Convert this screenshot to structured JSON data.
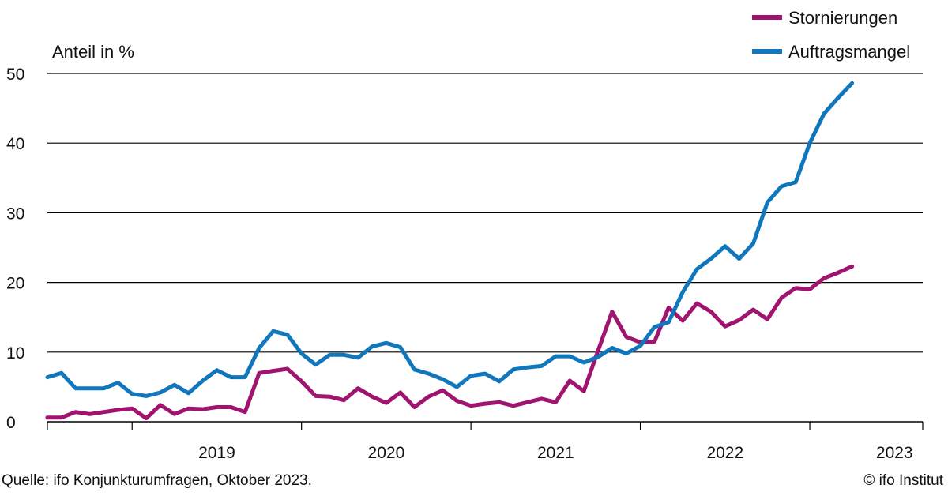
{
  "chart_data": {
    "type": "line",
    "ylabel": "Anteil in %",
    "ylim": [
      0,
      50
    ],
    "y_ticks": [
      0,
      10,
      20,
      30,
      40,
      50
    ],
    "x_start": "2018-07",
    "x_end": "2023-09",
    "x_tick_labels": [
      "2019",
      "2020",
      "2021",
      "2022",
      "2023"
    ],
    "grid": "horizontal",
    "legend_position": "top-right",
    "series": [
      {
        "name": "Stornierungen",
        "color": "#a0136e",
        "points": [
          [
            "2018-07",
            0.6
          ],
          [
            "2018-08",
            0.6
          ],
          [
            "2018-09",
            1.4
          ],
          [
            "2018-10",
            1.1
          ],
          [
            "2018-11",
            1.4
          ],
          [
            "2018-12",
            1.7
          ],
          [
            "2019-01",
            1.9
          ],
          [
            "2019-02",
            0.5
          ],
          [
            "2019-03",
            2.4
          ],
          [
            "2019-04",
            1.1
          ],
          [
            "2019-05",
            1.9
          ],
          [
            "2019-06",
            1.8
          ],
          [
            "2019-07",
            2.1
          ],
          [
            "2019-08",
            2.1
          ],
          [
            "2019-09",
            1.4
          ],
          [
            "2019-10",
            7.0
          ],
          [
            "2019-11",
            7.3
          ],
          [
            "2019-12",
            7.6
          ],
          [
            "2020-01",
            5.8
          ],
          [
            "2020-02",
            3.7
          ],
          [
            "2020-03",
            3.6
          ],
          [
            "2020-04",
            3.1
          ],
          [
            "2020-05",
            4.8
          ],
          [
            "2020-06",
            3.6
          ],
          [
            "2020-07",
            2.7
          ],
          [
            "2020-08",
            4.2
          ],
          [
            "2020-09",
            2.1
          ],
          [
            "2020-10",
            3.6
          ],
          [
            "2020-11",
            4.5
          ],
          [
            "2020-12",
            3.0
          ],
          [
            "2021-01",
            2.3
          ],
          [
            "2021-02",
            2.6
          ],
          [
            "2021-03",
            2.8
          ],
          [
            "2021-04",
            2.3
          ],
          [
            "2021-05",
            2.8
          ],
          [
            "2021-06",
            3.3
          ],
          [
            "2021-07",
            2.8
          ],
          [
            "2021-08",
            5.9
          ],
          [
            "2021-09",
            4.4
          ],
          [
            "2021-10",
            10.2
          ],
          [
            "2021-11",
            15.8
          ],
          [
            "2021-12",
            12.2
          ],
          [
            "2022-01",
            11.4
          ],
          [
            "2022-02",
            11.5
          ],
          [
            "2022-03",
            16.4
          ],
          [
            "2022-04",
            14.5
          ],
          [
            "2022-05",
            17.0
          ],
          [
            "2022-06",
            15.8
          ],
          [
            "2022-07",
            13.7
          ],
          [
            "2022-08",
            14.6
          ],
          [
            "2022-09",
            16.1
          ],
          [
            "2022-10",
            14.7
          ],
          [
            "2022-11",
            17.8
          ],
          [
            "2022-12",
            19.2
          ],
          [
            "2023-01",
            19.0
          ],
          [
            "2023-02",
            20.6
          ],
          [
            "2023-03",
            21.4
          ],
          [
            "2023-04",
            22.3
          ]
        ]
      },
      {
        "name": "Auftragsmangel",
        "color": "#1077bd",
        "points": [
          [
            "2018-07",
            6.4
          ],
          [
            "2018-08",
            7.0
          ],
          [
            "2018-09",
            4.8
          ],
          [
            "2018-10",
            4.8
          ],
          [
            "2018-11",
            4.8
          ],
          [
            "2018-12",
            5.6
          ],
          [
            "2019-01",
            4.0
          ],
          [
            "2019-02",
            3.7
          ],
          [
            "2019-03",
            4.2
          ],
          [
            "2019-04",
            5.3
          ],
          [
            "2019-05",
            4.1
          ],
          [
            "2019-06",
            5.9
          ],
          [
            "2019-07",
            7.4
          ],
          [
            "2019-08",
            6.4
          ],
          [
            "2019-09",
            6.4
          ],
          [
            "2019-10",
            10.6
          ],
          [
            "2019-11",
            13.0
          ],
          [
            "2019-12",
            12.5
          ],
          [
            "2020-01",
            9.8
          ],
          [
            "2020-02",
            8.2
          ],
          [
            "2020-03",
            9.6
          ],
          [
            "2020-04",
            9.6
          ],
          [
            "2020-05",
            9.2
          ],
          [
            "2020-06",
            10.8
          ],
          [
            "2020-07",
            11.3
          ],
          [
            "2020-08",
            10.7
          ],
          [
            "2020-09",
            7.5
          ],
          [
            "2020-10",
            6.9
          ],
          [
            "2020-11",
            6.1
          ],
          [
            "2020-12",
            5.0
          ],
          [
            "2021-01",
            6.6
          ],
          [
            "2021-02",
            6.9
          ],
          [
            "2021-03",
            5.8
          ],
          [
            "2021-04",
            7.5
          ],
          [
            "2021-05",
            7.8
          ],
          [
            "2021-06",
            8.0
          ],
          [
            "2021-07",
            9.4
          ],
          [
            "2021-08",
            9.4
          ],
          [
            "2021-09",
            8.5
          ],
          [
            "2021-10",
            9.3
          ],
          [
            "2021-11",
            10.6
          ],
          [
            "2021-12",
            9.8
          ],
          [
            "2022-01",
            10.9
          ],
          [
            "2022-02",
            13.6
          ],
          [
            "2022-03",
            14.3
          ],
          [
            "2022-04",
            18.6
          ],
          [
            "2022-05",
            21.9
          ],
          [
            "2022-06",
            23.4
          ],
          [
            "2022-07",
            25.2
          ],
          [
            "2022-08",
            23.4
          ],
          [
            "2022-09",
            25.6
          ],
          [
            "2022-10",
            31.5
          ],
          [
            "2022-11",
            33.8
          ],
          [
            "2022-12",
            34.4
          ],
          [
            "2023-01",
            40.0
          ],
          [
            "2023-02",
            44.2
          ],
          [
            "2023-03",
            46.5
          ],
          [
            "2023-04",
            48.6
          ]
        ]
      }
    ]
  },
  "source_note": "Quelle: ifo Konjunkturumfragen, Oktober 2023.",
  "copyright": "© ifo Institut"
}
